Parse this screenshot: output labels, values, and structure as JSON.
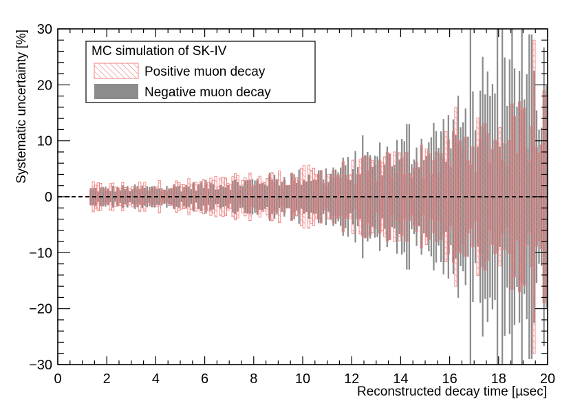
{
  "chart_data": {
    "type": "bar",
    "subtype": "uncertainty-band-histogram",
    "title": "",
    "xlabel": "Reconstructed decay time [µsec]",
    "ylabel": "Systematic uncertainty [%]",
    "xlim": [
      0,
      20
    ],
    "ylim": [
      -30,
      30
    ],
    "x_ticks": [
      "0",
      "2",
      "4",
      "6",
      "8",
      "10",
      "12",
      "14",
      "16",
      "18",
      "20"
    ],
    "y_ticks": [
      "30",
      "20",
      "10",
      "0",
      "−10",
      "−20",
      "−30"
    ],
    "bin_start": 1.3,
    "bin_end": 20.0,
    "bin_width": 0.1,
    "reference_line": {
      "y": 0,
      "style": "dashed",
      "color": "#000000"
    },
    "legend": {
      "title": "MC simulation of SK-IV",
      "position": "top-left",
      "entries": [
        {
          "label": "Positive muon decay",
          "style": "hatched",
          "color": "#f08080"
        },
        {
          "label": "Negative muon decay",
          "style": "solid",
          "color": "#8c8c8c"
        }
      ]
    },
    "series": [
      {
        "name": "Positive muon decay",
        "style": "hatched",
        "color": "#f08080",
        "envelope": [
          [
            1.3,
            2.7
          ],
          [
            3.0,
            2.8
          ],
          [
            4.0,
            3.0
          ],
          [
            5.0,
            3.2
          ],
          [
            6.0,
            3.6
          ],
          [
            7.0,
            4.0
          ],
          [
            8.0,
            4.6
          ],
          [
            9.0,
            5.0
          ],
          [
            10.0,
            5.6
          ],
          [
            11.0,
            6.2
          ],
          [
            12.0,
            6.8
          ],
          [
            13.0,
            7.8
          ],
          [
            14.0,
            8.8
          ],
          [
            15.0,
            10.0
          ],
          [
            16.0,
            12.0
          ],
          [
            17.0,
            14.0
          ],
          [
            18.0,
            16.0
          ],
          [
            19.0,
            17.5
          ],
          [
            20.0,
            19.0
          ]
        ],
        "peaks": [
          {
            "x": 16.25,
            "y": 16.0
          },
          {
            "x": 18.85,
            "y": 17.0
          },
          {
            "x": 19.45,
            "y": 28.0
          },
          {
            "x": 19.85,
            "y": 19.0
          }
        ]
      },
      {
        "name": "Negative muon decay",
        "style": "solid",
        "color": "#8c8c8c",
        "envelope": [
          [
            1.3,
            2.0
          ],
          [
            3.0,
            2.2
          ],
          [
            4.0,
            2.4
          ],
          [
            5.0,
            2.6
          ],
          [
            6.0,
            3.0
          ],
          [
            7.0,
            3.4
          ],
          [
            8.0,
            4.0
          ],
          [
            9.0,
            4.6
          ],
          [
            10.0,
            5.2
          ],
          [
            11.0,
            6.0
          ],
          [
            12.0,
            8.0
          ],
          [
            13.0,
            10.0
          ],
          [
            14.0,
            12.0
          ],
          [
            15.0,
            14.0
          ],
          [
            16.0,
            17.0
          ],
          [
            17.0,
            21.0
          ],
          [
            18.0,
            24.0
          ],
          [
            19.0,
            28.0
          ],
          [
            20.0,
            30.0
          ]
        ],
        "peaks": [
          {
            "x": 12.45,
            "y": 11.0
          },
          {
            "x": 14.3,
            "y": 13.0
          },
          {
            "x": 16.85,
            "y": 31.0
          },
          {
            "x": 17.35,
            "y": 25.0
          },
          {
            "x": 17.95,
            "y": 30.0
          },
          {
            "x": 18.15,
            "y": 31.0
          },
          {
            "x": 18.55,
            "y": 31.0
          },
          {
            "x": 18.95,
            "y": 31.0
          },
          {
            "x": 19.3,
            "y": 29.0
          }
        ]
      }
    ]
  }
}
